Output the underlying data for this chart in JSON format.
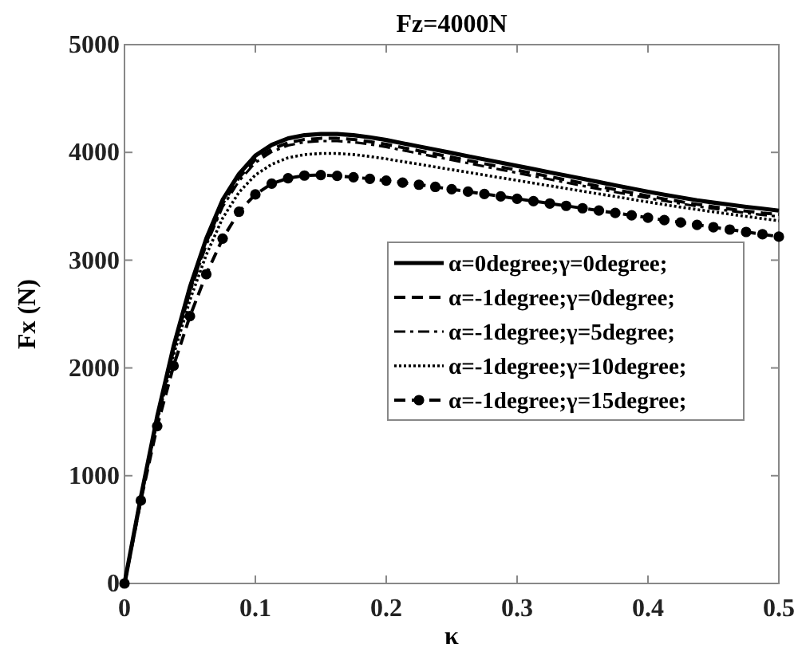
{
  "chart_data": {
    "type": "line",
    "title": "Fz=4000N",
    "xlabel": "κ",
    "ylabel": "Fx (N)",
    "x": [
      0,
      0.0125,
      0.025,
      0.0375,
      0.05,
      0.0625,
      0.075,
      0.0875,
      0.1,
      0.1125,
      0.125,
      0.1375,
      0.15,
      0.1625,
      0.175,
      0.1875,
      0.2,
      0.2125,
      0.225,
      0.2375,
      0.25,
      0.2625,
      0.275,
      0.2875,
      0.3,
      0.3125,
      0.325,
      0.3375,
      0.35,
      0.3625,
      0.375,
      0.3875,
      0.4,
      0.4125,
      0.425,
      0.4375,
      0.45,
      0.4625,
      0.475,
      0.4875,
      0.5
    ],
    "xlim": [
      0,
      0.5
    ],
    "xticks": [
      0,
      0.1,
      0.2,
      0.3,
      0.4,
      0.5
    ],
    "ylim": [
      0,
      5000
    ],
    "yticks": [
      0,
      1000,
      2000,
      3000,
      4000,
      5000
    ],
    "grid": false,
    "legend": "right",
    "series": [
      {
        "name": "α=0degree;γ=0degree;",
        "color": "#000000",
        "line_style": "solid",
        "marker": "none",
        "values": [
          0,
          800,
          1550,
          2200,
          2750,
          3200,
          3560,
          3800,
          3970,
          4070,
          4130,
          4160,
          4170,
          4170,
          4160,
          4140,
          4115,
          4085,
          4055,
          4025,
          3995,
          3965,
          3935,
          3905,
          3875,
          3845,
          3815,
          3785,
          3755,
          3725,
          3695,
          3665,
          3635,
          3608,
          3582,
          3556,
          3535,
          3515,
          3495,
          3478,
          3460
        ]
      },
      {
        "name": "α=-1degree;γ=0degree;",
        "color": "#000000",
        "line_style": "dashed",
        "marker": "none",
        "values": [
          0,
          800,
          1540,
          2180,
          2720,
          3165,
          3525,
          3765,
          3935,
          4030,
          4090,
          4120,
          4130,
          4130,
          4120,
          4100,
          4075,
          4045,
          4015,
          3985,
          3955,
          3925,
          3895,
          3865,
          3835,
          3805,
          3775,
          3745,
          3715,
          3685,
          3655,
          3625,
          3595,
          3568,
          3543,
          3518,
          3495,
          3475,
          3455,
          3438,
          3425
        ]
      },
      {
        "name": "α=-1degree;γ=5degree;",
        "color": "#000000",
        "line_style": "dashdot",
        "marker": "none",
        "values": [
          0,
          795,
          1530,
          2165,
          2700,
          3140,
          3495,
          3735,
          3905,
          4005,
          4065,
          4095,
          4105,
          4105,
          4095,
          4075,
          4050,
          4020,
          3990,
          3960,
          3930,
          3900,
          3870,
          3840,
          3810,
          3780,
          3750,
          3720,
          3690,
          3660,
          3632,
          3604,
          3576,
          3550,
          3525,
          3500,
          3478,
          3458,
          3438,
          3420,
          3405
        ]
      },
      {
        "name": "α=-1degree;γ=10degree;",
        "color": "#000000",
        "line_style": "dotted",
        "marker": "none",
        "values": [
          0,
          790,
          1510,
          2120,
          2630,
          3050,
          3390,
          3630,
          3790,
          3890,
          3950,
          3980,
          3990,
          3990,
          3980,
          3962,
          3940,
          3915,
          3890,
          3865,
          3840,
          3815,
          3790,
          3765,
          3740,
          3715,
          3690,
          3665,
          3640,
          3615,
          3590,
          3565,
          3540,
          3515,
          3492,
          3470,
          3448,
          3427,
          3406,
          3386,
          3365
        ]
      },
      {
        "name": "α=-1degree;γ=15degree;",
        "color": "#000000",
        "line_style": "dashed",
        "marker": "circle",
        "values": [
          0,
          770,
          1460,
          2020,
          2480,
          2870,
          3200,
          3450,
          3610,
          3710,
          3760,
          3785,
          3790,
          3782,
          3770,
          3755,
          3738,
          3720,
          3700,
          3680,
          3658,
          3636,
          3614,
          3592,
          3570,
          3548,
          3526,
          3504,
          3482,
          3460,
          3438,
          3416,
          3394,
          3372,
          3350,
          3328,
          3306,
          3284,
          3262,
          3240,
          3218
        ]
      }
    ]
  }
}
